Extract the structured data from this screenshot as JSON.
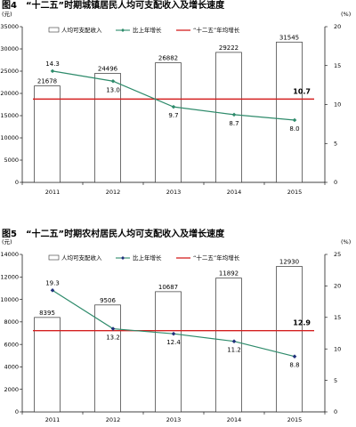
{
  "colors": {
    "bar_fill": "#ffffff",
    "bar_stroke": "#333333",
    "growth": "#2e8b6b",
    "growth_marker_1": "#2e8b6b",
    "growth_marker_2": "#1f2f7a",
    "avg_line": "#d42020"
  },
  "chart_data": [
    {
      "type": "bar",
      "title": "图4　“十二五”时期城镇居民人均可支配收入及增长速度",
      "left_unit": "(元)",
      "right_unit": "(%)",
      "categories": [
        "2011",
        "2012",
        "2013",
        "2014",
        "2015"
      ],
      "ylim": [
        0,
        35000
      ],
      "yticks": [
        "0",
        "5000",
        "10000",
        "15000",
        "20000",
        "25000",
        "30000",
        "35000"
      ],
      "y2lim": [
        0,
        20
      ],
      "y2ticks": [
        "0",
        "5",
        "10",
        "15",
        "20"
      ],
      "legend": [
        "人均可支配收入",
        "比上年增长",
        "“十二五”年均增长"
      ],
      "series": [
        {
          "name": "人均可支配收入",
          "type": "bar",
          "axis": "left",
          "values": [
            21678,
            24496,
            26882,
            29222,
            31545
          ],
          "labels": [
            "21678",
            "24496",
            "26882",
            "29222",
            "31545"
          ]
        },
        {
          "name": "比上年增长",
          "type": "line",
          "axis": "right",
          "values": [
            14.3,
            13.0,
            9.7,
            8.7,
            8.0
          ],
          "labels": [
            "14.3",
            "13.0",
            "9.7",
            "8.7",
            "8.0"
          ]
        },
        {
          "name": "“十二五”年均增长",
          "type": "hline",
          "axis": "right",
          "value": 10.7,
          "label": "10.7"
        }
      ]
    },
    {
      "type": "bar",
      "title": "图5　“十二五”时期农村居民人均可支配收入及增长速度",
      "left_unit": "(元)",
      "right_unit": "(%)",
      "categories": [
        "2011",
        "2012",
        "2013",
        "2014",
        "2015"
      ],
      "ylim": [
        0,
        14000
      ],
      "yticks": [
        "0",
        "2000",
        "4000",
        "6000",
        "8000",
        "10000",
        "12000",
        "14000"
      ],
      "y2lim": [
        0,
        25
      ],
      "y2ticks": [
        "0",
        "5",
        "10",
        "15",
        "20",
        "25"
      ],
      "legend": [
        "人均可支配收入",
        "比上年增长",
        "“十二五”年均增长"
      ],
      "series": [
        {
          "name": "人均可支配收入",
          "type": "bar",
          "axis": "left",
          "values": [
            8395,
            9506,
            10687,
            11892,
            12930
          ],
          "labels": [
            "8395",
            "9506",
            "10687",
            "11892",
            "12930"
          ]
        },
        {
          "name": "比上年增长",
          "type": "line",
          "axis": "right",
          "values": [
            19.3,
            13.2,
            12.4,
            11.2,
            8.8
          ],
          "labels": [
            "19.3",
            "13.2",
            "12.4",
            "11.2",
            "8.8"
          ]
        },
        {
          "name": "“十二五”年均增长",
          "type": "hline",
          "axis": "right",
          "value": 12.9,
          "label": "12.9"
        }
      ]
    }
  ]
}
